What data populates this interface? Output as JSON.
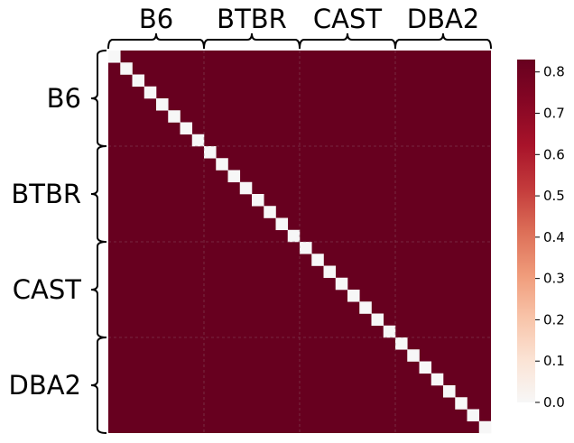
{
  "chart_data": {
    "type": "heatmap",
    "title": "",
    "xlabel": "",
    "ylabel": "",
    "groups": [
      "B6",
      "BTBR",
      "CAST",
      "DBA2"
    ],
    "cells_per_group": 8,
    "n": 32,
    "off_diagonal_value": 0.83,
    "diagonal_value": 0.0,
    "colorbar": {
      "min": 0.0,
      "max": 0.83,
      "ticks": [
        "0.0",
        "0.1",
        "0.2",
        "0.3",
        "0.4",
        "0.5",
        "0.6",
        "0.7",
        "0.8"
      ],
      "tick_values": [
        0.0,
        0.1,
        0.2,
        0.3,
        0.4,
        0.5,
        0.6,
        0.7,
        0.8
      ]
    },
    "colormap": "RdBu_r (white to dark red)",
    "colors": {
      "high": "#67001f",
      "low": "#f7f7f7",
      "group_gridline": "#8a5a6a"
    }
  }
}
